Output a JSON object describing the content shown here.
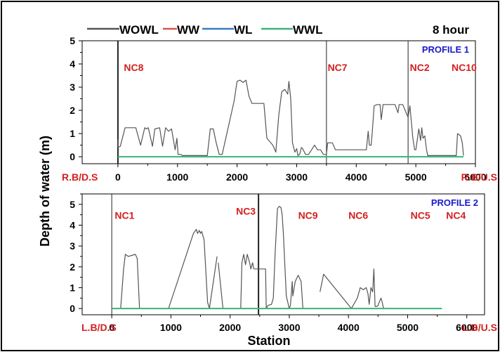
{
  "figure": {
    "time_label": "8 hour",
    "ylabel": "Depth of water (m)",
    "xlabel": "Station"
  },
  "colors": {
    "WOWL": "#555555",
    "WW": "#e05050",
    "WL": "#3a78c8",
    "WWL": "#3cb37a",
    "node_text": "#d42020",
    "profile_text": "#1a1acc",
    "axis": "#000000"
  },
  "legend": [
    {
      "name": "WOWL",
      "color": "#555555"
    },
    {
      "name": "WW",
      "color": "#e05050"
    },
    {
      "name": "WL",
      "color": "#3a78c8"
    },
    {
      "name": "WWL",
      "color": "#3cb37a"
    }
  ],
  "chart_data": [
    {
      "type": "line",
      "title": "PROFILE 1",
      "xlabel": "",
      "ylabel": "Depth of water (m)",
      "xlim": [
        -600,
        6000
      ],
      "ylim": [
        -0.3,
        5
      ],
      "x_ticks": [
        0,
        1000,
        2000,
        3000,
        4000,
        5000,
        6000
      ],
      "x_tick_labels": [
        "0",
        "1000",
        "2000",
        "3000",
        "4000",
        "5000",
        "6000"
      ],
      "y_ticks": [
        0,
        1,
        2,
        3,
        4,
        5
      ],
      "end_labels": {
        "left": "R.B/D.S",
        "right": "R.B/U.S"
      },
      "vlines": [
        0,
        3500,
        4870
      ],
      "nodes": [
        {
          "label": "NC8",
          "x": 100,
          "y": 3.7
        },
        {
          "label": "NC7",
          "x": 3520,
          "y": 3.7
        },
        {
          "label": "NC2",
          "x": 4900,
          "y": 3.7
        },
        {
          "label": "NC10",
          "x": 5600,
          "y": 3.7
        }
      ],
      "series": [
        {
          "name": "WOWL",
          "x": [
            0,
            0,
            40,
            120,
            200,
            300,
            380,
            450,
            480,
            510,
            580,
            620,
            700,
            750,
            800,
            850,
            900,
            960,
            990,
            1010,
            1060,
            1080,
            1150,
            1500,
            1550,
            1600,
            1650,
            1700,
            1750,
            1950,
            2000,
            2050,
            2100,
            2150,
            2200,
            2250,
            2300,
            2450,
            2500,
            2600,
            2650,
            2700,
            2750,
            2800,
            2850,
            2870,
            2900,
            2930,
            2970,
            3000,
            3020,
            3050,
            3080,
            3100,
            3150,
            3200,
            3250,
            3300,
            3350,
            3400,
            3450,
            3500,
            3520,
            3600,
            3650,
            4170,
            4200,
            4220,
            4250,
            4270,
            4300,
            4350,
            4400,
            4420,
            4450,
            4650,
            4700,
            4720,
            4780,
            4870,
            4900,
            4950,
            4980,
            5000,
            5050,
            5080,
            5100,
            5120,
            5150,
            5180,
            5200,
            5250,
            5300,
            5680,
            5700,
            5750,
            5780,
            5800
          ],
          "y": [
            0.75,
            0.4,
            0.45,
            1.25,
            1.25,
            1.25,
            0.5,
            1.25,
            1.2,
            1.25,
            0.45,
            1.2,
            1.25,
            0.45,
            1.25,
            1.1,
            1.2,
            0.3,
            0.8,
            0.1,
            0.1,
            0.05,
            0.05,
            0.05,
            1.2,
            1.2,
            0.6,
            0.1,
            0.1,
            2.4,
            3.25,
            3.3,
            3.2,
            3.3,
            2.6,
            2.3,
            2.3,
            2.3,
            0.8,
            0.5,
            0.2,
            1.8,
            2.8,
            2.9,
            2.7,
            3.25,
            2.5,
            0.6,
            0.2,
            0.35,
            0.05,
            0.1,
            0.4,
            0.35,
            0.1,
            0.1,
            0.3,
            0.5,
            0.3,
            0.3,
            0.1,
            0.1,
            0.6,
            0.6,
            0.3,
            0.3,
            1.1,
            0.5,
            0.5,
            1.1,
            2.2,
            2.25,
            2.25,
            1.6,
            2.25,
            2.25,
            1.9,
            2.25,
            2.25,
            1.7,
            2.2,
            0.8,
            0.3,
            0.3,
            1.2,
            0.7,
            1.25,
            0.8,
            0.9,
            0.3,
            0.05,
            0.05,
            0.05,
            0.05,
            1.0,
            0.9,
            0.6,
            0.05
          ]
        },
        {
          "name": "WWL",
          "x": [
            0,
            5800
          ],
          "y": [
            0,
            0
          ]
        }
      ]
    },
    {
      "type": "line",
      "title": "PROFILE 2",
      "xlabel": "Station",
      "ylabel": "Depth of water (m)",
      "xlim": [
        -500,
        6300
      ],
      "ylim": [
        -0.3,
        5.5
      ],
      "x_ticks": [
        0,
        1000,
        2000,
        3000,
        4000,
        5000,
        6000
      ],
      "x_tick_labels": [
        "0",
        "1000",
        "2000",
        "3000",
        "4000",
        "5000",
        "6000"
      ],
      "y_ticks": [
        0,
        1,
        2,
        3,
        4,
        5
      ],
      "end_labels": {
        "left": "L.B/D.S",
        "right": "L.B/U.S"
      },
      "vlines": [
        0,
        2480
      ],
      "nodes": [
        {
          "label": "NC1",
          "x": 50,
          "y": 4.3
        },
        {
          "label": "NC3",
          "x": 2100,
          "y": 4.5
        },
        {
          "label": "NC9",
          "x": 3150,
          "y": 4.3
        },
        {
          "label": "NC6",
          "x": 4000,
          "y": 4.3
        },
        {
          "label": "NC5",
          "x": 5050,
          "y": 4.3
        },
        {
          "label": "NC4",
          "x": 5650,
          "y": 4.3
        }
      ],
      "series": [
        {
          "name": "WOWL",
          "x": [
            150,
            200,
            230,
            280,
            400,
            430,
            470,
            960,
            1380,
            1430,
            1450,
            1480,
            1500,
            1520,
            1540,
            1560,
            1620,
            1650,
            1780,
            1800,
            1880,
            2180,
            2200,
            2230,
            2260,
            2290,
            2330,
            2350,
            2380,
            2400,
            2450,
            2600,
            2610,
            2640,
            2700,
            2730,
            2760,
            2800,
            2830,
            2860,
            2880,
            2900,
            2950,
            3000,
            3020,
            3050,
            3060,
            3100,
            3150,
            3200,
            3230,
            3320,
            3520,
            3580,
            4050,
            4150,
            4200,
            4250,
            4300,
            4330,
            4350,
            4380,
            4410,
            4430,
            4450,
            4480,
            4500,
            4520,
            4550,
            4570,
            4590,
            4600
          ],
          "y": [
            0,
            1.9,
            2.6,
            2.5,
            2.6,
            2.4,
            0,
            0,
            3.6,
            3.8,
            3.6,
            3.75,
            3.6,
            3.7,
            3.5,
            3.3,
            0.3,
            0,
            2.5,
            2.2,
            0,
            0,
            2.2,
            2.6,
            2.1,
            2.6,
            2.2,
            1.9,
            2.2,
            1.9,
            1.9,
            1.9,
            0,
            0.15,
            0.2,
            0.5,
            2.6,
            4.8,
            4.9,
            4.85,
            4.5,
            3.6,
            0.6,
            0,
            0.15,
            1.3,
            0.6,
            1.3,
            1.6,
            1.3,
            0,
            0,
            0.8,
            1.65,
            0,
            0.5,
            1.0,
            0.9,
            1.0,
            0.7,
            0.2,
            1.0,
            0.8,
            1.9,
            0.1,
            0.1,
            0.15,
            0.3,
            0.5,
            0.3,
            0.05,
            0
          ],
          "segments": [
            [
              0,
              6
            ],
            [
              7,
              18
            ],
            [
              19,
              29
            ],
            [
              29,
              33
            ],
            [
              33,
              51
            ],
            [
              52,
              55
            ],
            [
              55,
              71
            ]
          ]
        },
        {
          "name": "WWL",
          "x": [
            0,
            5580
          ],
          "y": [
            0,
            0
          ]
        }
      ]
    }
  ]
}
